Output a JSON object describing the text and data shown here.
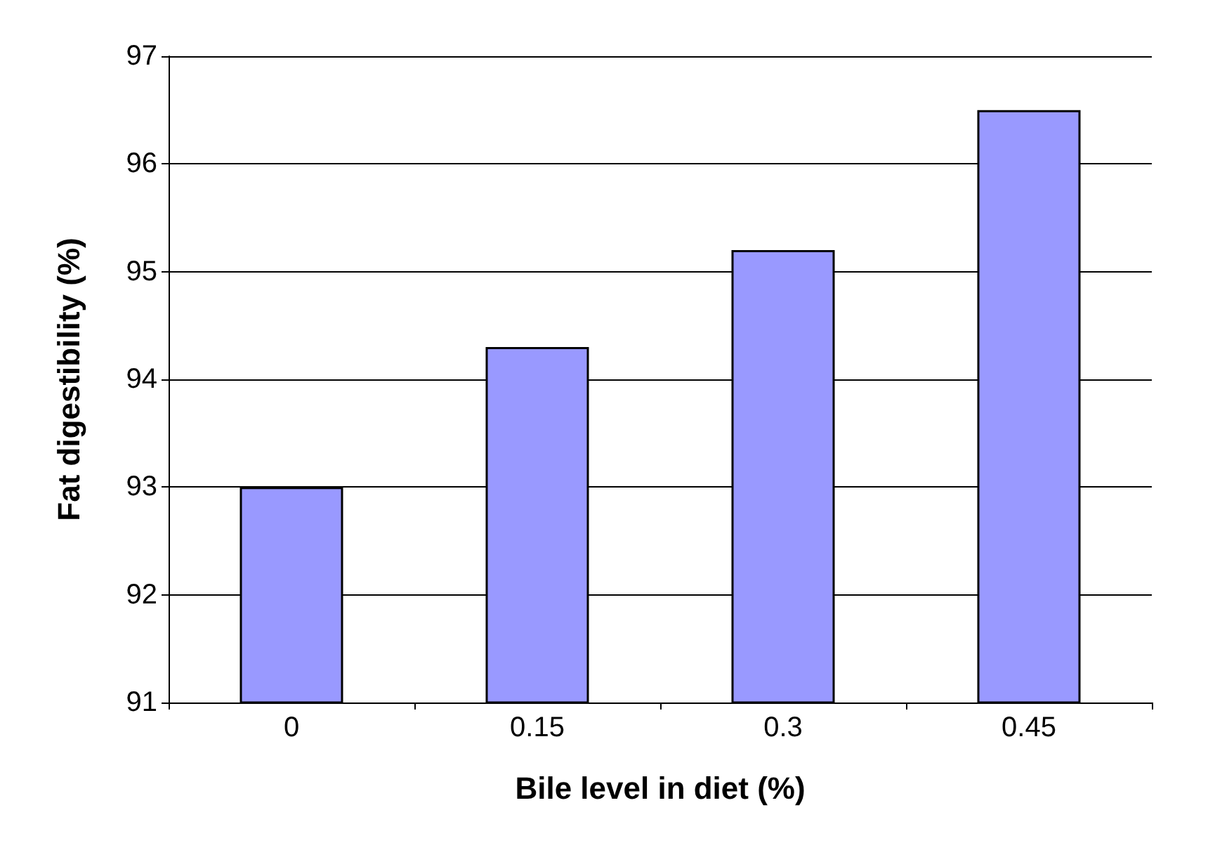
{
  "chart_data": {
    "type": "bar",
    "xlabel": "Bile level in diet (%)",
    "ylabel": "Fat digestibility (%)",
    "categories": [
      "0",
      "0.15",
      "0.3",
      "0.45"
    ],
    "values": [
      93.0,
      94.3,
      95.2,
      96.5
    ],
    "color": "#9999ff",
    "ylim": [
      91,
      97
    ],
    "yticks": [
      91,
      92,
      93,
      94,
      95,
      96,
      97
    ],
    "grid": "y"
  }
}
